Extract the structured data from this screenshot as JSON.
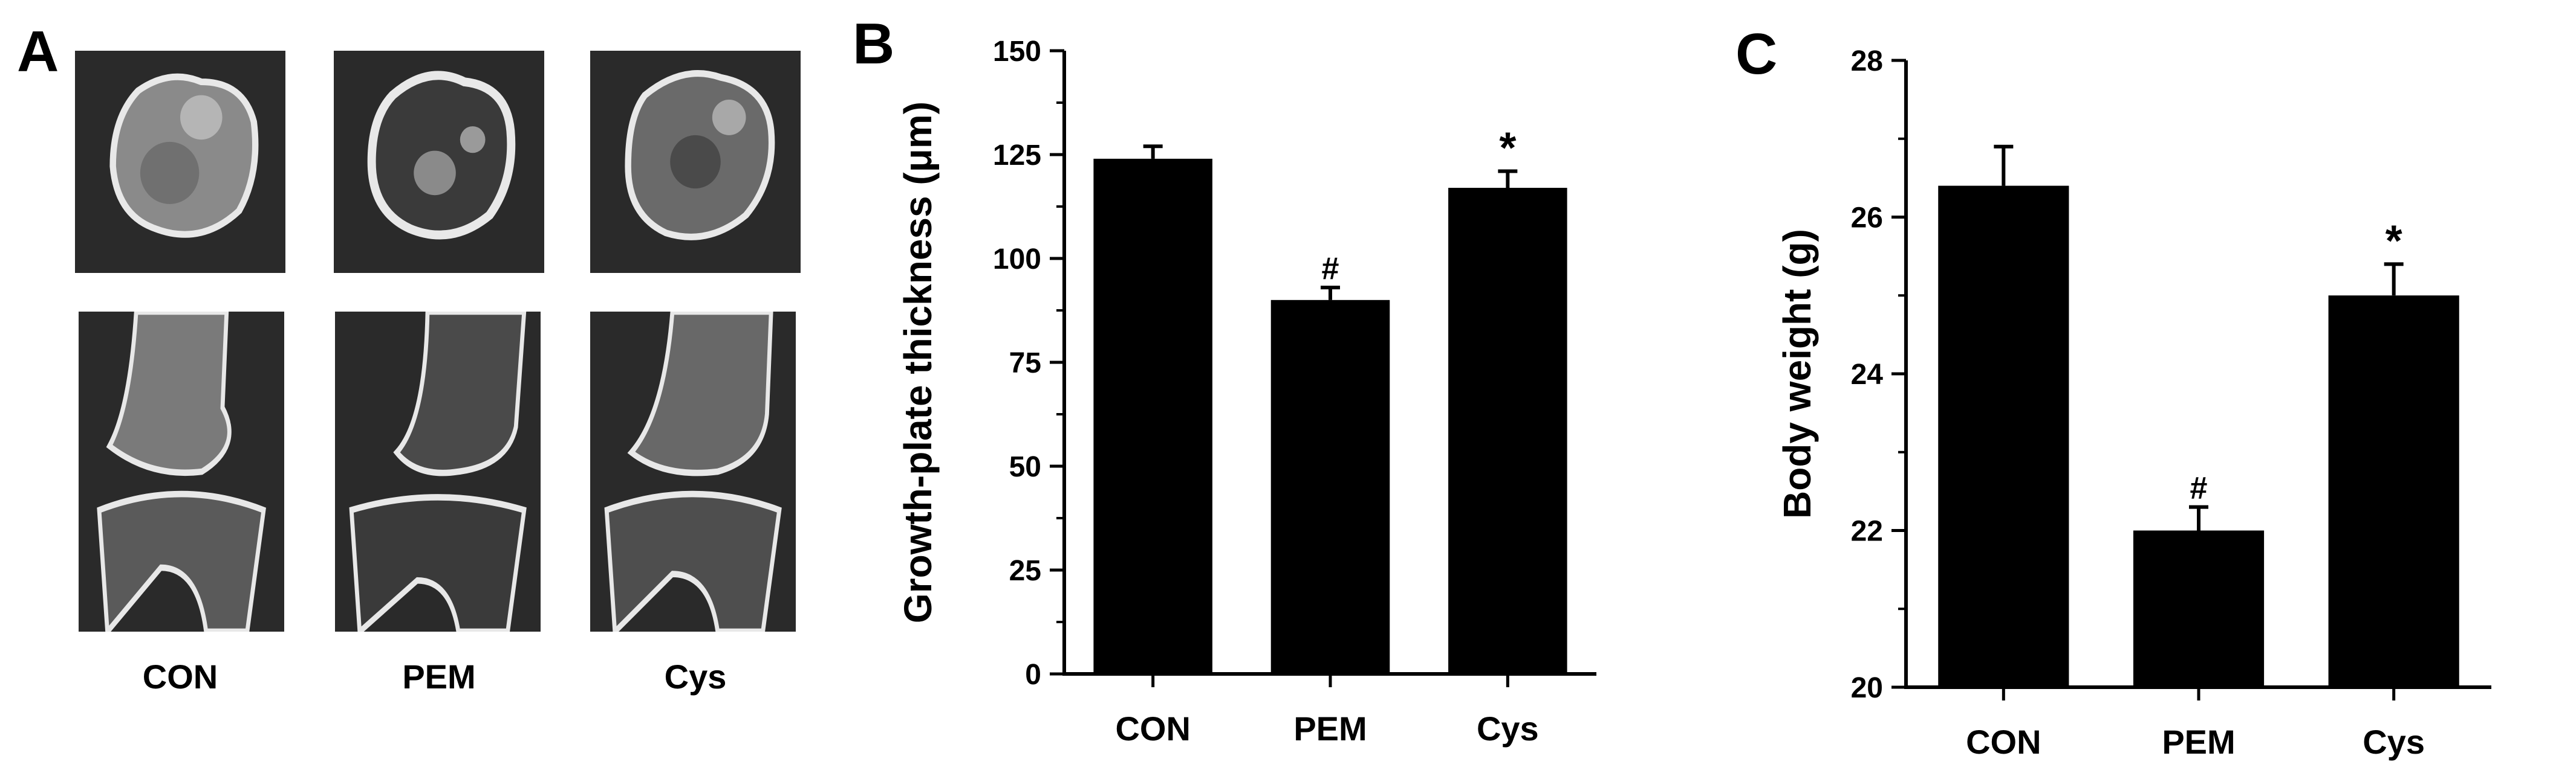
{
  "panel_a": {
    "letter": "A",
    "groups": [
      "CON",
      "PEM",
      "Cys"
    ]
  },
  "chart_data": [
    {
      "panel": "B",
      "type": "bar",
      "categories": [
        "CON",
        "PEM",
        "Cys"
      ],
      "values": [
        124,
        90,
        117
      ],
      "errors": [
        3,
        3,
        4
      ],
      "annotations": [
        "",
        "#",
        "*"
      ],
      "ylabel": "Growth-plate thickness (μm)",
      "xlabel": "",
      "ylim": [
        0,
        150
      ],
      "yticks": [
        "0",
        "25",
        "50",
        "75",
        "100",
        "125",
        "150"
      ],
      "bar_color": "#000000",
      "grid": false
    },
    {
      "panel": "C",
      "type": "bar",
      "categories": [
        "CON",
        "PEM",
        "Cys"
      ],
      "values": [
        26.4,
        22.0,
        25.0
      ],
      "errors": [
        0.5,
        0.3,
        0.4
      ],
      "annotations": [
        "",
        "#",
        "*"
      ],
      "ylabel": "Body weight (g)",
      "xlabel": "",
      "ylim": [
        20,
        28
      ],
      "yticks": [
        "20",
        "22",
        "24",
        "26",
        "28"
      ],
      "bar_color": "#000000",
      "grid": false
    }
  ]
}
